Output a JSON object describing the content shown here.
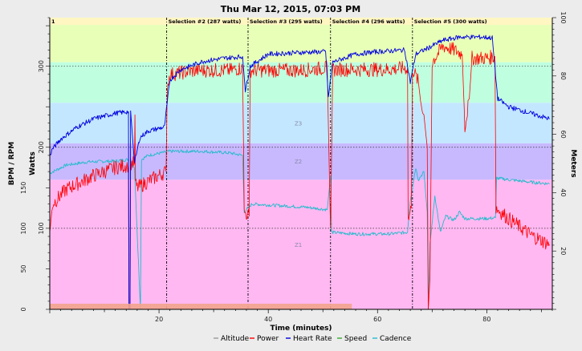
{
  "chart_data": {
    "type": "line",
    "title": "Thu Mar 12, 2015, 07:03 PM",
    "xlabel": "Time (minutes)",
    "ylabel_left_outer": "BPM / RPM",
    "ylabel_left_inner": "Watts",
    "ylabel_right": "Meters",
    "xlim": [
      0,
      92
    ],
    "xticks": [
      20,
      40,
      60,
      80
    ],
    "ylim_left": [
      0,
      360
    ],
    "left_outer_ticks": [
      0,
      50,
      100,
      150
    ],
    "left_inner_ticks": [
      100,
      200,
      300
    ],
    "ylim_right": [
      0,
      100
    ],
    "right_ticks": [
      20,
      40,
      60,
      80,
      100
    ],
    "grid": "off",
    "legend_position": "bottom-center",
    "zones": [
      {
        "label": "",
        "from": 0,
        "to": 160,
        "color": "#ffb8f2"
      },
      {
        "label": "Z2",
        "from": 160,
        "to": 205,
        "color": "#c8b9ff"
      },
      {
        "label": "Z3",
        "from": 205,
        "to": 255,
        "color": "#c3e7ff"
      },
      {
        "label": "",
        "from": 255,
        "to": 305,
        "color": "#bfffe0"
      },
      {
        "label": "",
        "from": 305,
        "to": 360,
        "color": "#e8ffb8"
      }
    ],
    "zone_labels_shown": [
      "Z3",
      "Z2",
      "Z1"
    ],
    "hlines": [
      100,
      200,
      300
    ],
    "selections": [
      {
        "label": "1",
        "start": 0.0,
        "end": 21.4
      },
      {
        "label": "Selection #2 (287 watts)",
        "start": 21.4,
        "end": 36.3
      },
      {
        "label": "Selection #3 (295 watts)",
        "start": 36.3,
        "end": 51.4
      },
      {
        "label": "Selection #4 (296 watts)",
        "start": 51.4,
        "end": 66.4
      },
      {
        "label": "Selection #5 (300 watts)",
        "start": 66.4,
        "end": 92.0
      }
    ],
    "series": [
      {
        "name": "Altitude",
        "color": "#999999",
        "points": [
          [
            0,
            0
          ],
          [
            92,
            0
          ]
        ]
      },
      {
        "name": "Power",
        "color": "#ff0000",
        "noise": 9,
        "points": [
          [
            0,
            95
          ],
          [
            0.5,
            130
          ],
          [
            3,
            148
          ],
          [
            8,
            165
          ],
          [
            12,
            175
          ],
          [
            14.4,
            178
          ],
          [
            14.5,
            0
          ],
          [
            14.7,
            0
          ],
          [
            14.8,
            180
          ],
          [
            15.5,
            180
          ],
          [
            15.6,
            240
          ],
          [
            15.7,
            155
          ],
          [
            16,
            150
          ],
          [
            18,
            158
          ],
          [
            21.3,
            170
          ],
          [
            21.5,
            275
          ],
          [
            22,
            290
          ],
          [
            27,
            295
          ],
          [
            33,
            295
          ],
          [
            35.3,
            298
          ],
          [
            35.6,
            120
          ],
          [
            36.5,
            115
          ],
          [
            36.7,
            295
          ],
          [
            40,
            295
          ],
          [
            46,
            295
          ],
          [
            50.8,
            298
          ],
          [
            51,
            230
          ],
          [
            51.4,
            100
          ],
          [
            51.8,
            296
          ],
          [
            55,
            296
          ],
          [
            62,
            296
          ],
          [
            65.5,
            298
          ],
          [
            65.6,
            110
          ],
          [
            66.2,
            125
          ],
          [
            66.4,
            298
          ],
          [
            67.5,
            280
          ],
          [
            68,
            250
          ],
          [
            68.5,
            240
          ],
          [
            69.1,
            200
          ],
          [
            69.3,
            0
          ],
          [
            69.6,
            40
          ],
          [
            70,
            305
          ],
          [
            72,
            325
          ],
          [
            74,
            320
          ],
          [
            75.5,
            315
          ],
          [
            76,
            225
          ],
          [
            76.8,
            260
          ],
          [
            77.3,
            310
          ],
          [
            80,
            310
          ],
          [
            81.5,
            312
          ],
          [
            81.7,
            125
          ],
          [
            84,
            112
          ],
          [
            88,
            92
          ],
          [
            91.5,
            80
          ]
        ]
      },
      {
        "name": "Heart Rate",
        "color": "#0000dd",
        "noise": 3,
        "points": [
          [
            0,
            190
          ],
          [
            0.5,
            198
          ],
          [
            2,
            210
          ],
          [
            5,
            225
          ],
          [
            8,
            235
          ],
          [
            12,
            242
          ],
          [
            14.4,
            244
          ],
          [
            14.5,
            0
          ],
          [
            14.7,
            0
          ],
          [
            14.8,
            245
          ],
          [
            15.5,
            180
          ],
          [
            16.5,
            212
          ],
          [
            18,
            220
          ],
          [
            21,
            225
          ],
          [
            22,
            283
          ],
          [
            24,
            296
          ],
          [
            28,
            306
          ],
          [
            32,
            310
          ],
          [
            35.3,
            312
          ],
          [
            35.8,
            270
          ],
          [
            36.7,
            300
          ],
          [
            40,
            315
          ],
          [
            46,
            317
          ],
          [
            50.5,
            318
          ],
          [
            51,
            262
          ],
          [
            51.8,
            305
          ],
          [
            56,
            315
          ],
          [
            60,
            318
          ],
          [
            65,
            320
          ],
          [
            66,
            280
          ],
          [
            67,
            315
          ],
          [
            70,
            325
          ],
          [
            72,
            332
          ],
          [
            75,
            336
          ],
          [
            79,
            336
          ],
          [
            81,
            335
          ],
          [
            82,
            260
          ],
          [
            84,
            250
          ],
          [
            88,
            242
          ],
          [
            91.5,
            235
          ]
        ]
      },
      {
        "name": "Speed",
        "color": "#33aa33",
        "points": [
          [
            0,
            0
          ],
          [
            92,
            0
          ]
        ]
      },
      {
        "name": "Cadence",
        "color": "#22bbcc",
        "noise": 2,
        "points": [
          [
            0,
            168
          ],
          [
            3,
            178
          ],
          [
            7,
            182
          ],
          [
            12,
            183
          ],
          [
            14.4,
            185
          ],
          [
            14.5,
            0
          ],
          [
            14.7,
            0
          ],
          [
            14.8,
            185
          ],
          [
            15.5,
            175
          ],
          [
            16.6,
            0
          ],
          [
            16.8,
            185
          ],
          [
            18,
            190
          ],
          [
            22,
            195
          ],
          [
            28,
            195
          ],
          [
            33,
            193
          ],
          [
            35.3,
            190
          ],
          [
            35.6,
            120
          ],
          [
            37,
            130
          ],
          [
            42,
            128
          ],
          [
            47,
            126
          ],
          [
            50.8,
            123
          ],
          [
            51.4,
            165
          ],
          [
            51.6,
            95
          ],
          [
            56,
            93
          ],
          [
            62,
            93
          ],
          [
            65.5,
            95
          ],
          [
            66,
            135
          ],
          [
            67,
            175
          ],
          [
            67.5,
            160
          ],
          [
            68.5,
            170
          ],
          [
            69.1,
            120
          ],
          [
            69.3,
            0
          ],
          [
            69.6,
            80
          ],
          [
            70.5,
            140
          ],
          [
            71.5,
            95
          ],
          [
            72.5,
            115
          ],
          [
            74,
            110
          ],
          [
            75,
            120
          ],
          [
            76,
            112
          ],
          [
            80,
            112
          ],
          [
            81.6,
            113
          ],
          [
            81.8,
            162
          ],
          [
            84,
            160
          ],
          [
            88,
            157
          ],
          [
            91.5,
            155
          ]
        ]
      }
    ]
  }
}
